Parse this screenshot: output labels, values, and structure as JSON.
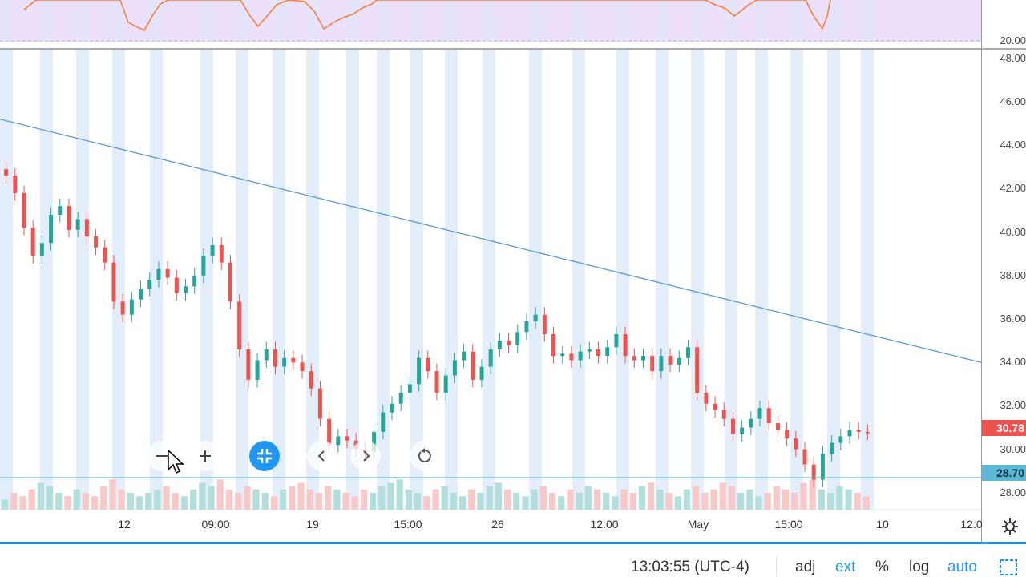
{
  "price_axis": {
    "rsi_labels": [
      "20.00"
    ],
    "labels": [
      "48.00",
      "46.00",
      "44.00",
      "42.00",
      "40.00",
      "38.00",
      "36.00",
      "34.00",
      "32.00",
      "30.00",
      "28.00"
    ],
    "last_price": "30.78",
    "line_price": "28.70",
    "last_price_color": "#ef5350",
    "line_price_color": "#5bb8d6"
  },
  "time_axis": {
    "labels": [
      "12",
      "09:00",
      "19",
      "15:00",
      "26",
      "12:00",
      "May",
      "15:00",
      "10",
      "12:0"
    ]
  },
  "nav_controls": {
    "zoom_out": "zoom-out",
    "zoom_in": "zoom-in",
    "reset": "reset-chart"
  },
  "bottom_bar": {
    "clock": "13:03:55 (UTC-4)",
    "adj": "adj",
    "ext": "ext",
    "percent": "%",
    "log": "log",
    "auto": "auto"
  },
  "colors": {
    "up": "#26a69a",
    "down": "#ef5350",
    "trendline": "#5b9bd5",
    "rsi": "#f57c32",
    "rsi_band": "#ede0fb",
    "session_band": "#e3eefa",
    "accent": "#2196f3"
  },
  "chart_data": {
    "type": "candlestick",
    "y_range": [
      27,
      48.5
    ],
    "closes": [
      42.6,
      41.8,
      40.2,
      38.9,
      39.5,
      40.8,
      41.2,
      40.1,
      40.6,
      39.8,
      39.3,
      38.6,
      36.8,
      36.2,
      36.9,
      37.4,
      37.8,
      38.3,
      37.9,
      37.2,
      37.5,
      38.0,
      38.9,
      39.4,
      38.6,
      36.8,
      34.6,
      33.2,
      34.1,
      34.6,
      33.8,
      34.2,
      34.0,
      33.6,
      32.8,
      31.4,
      30.2,
      30.6,
      30.4,
      30.0,
      29.9,
      30.8,
      31.7,
      32.1,
      32.6,
      33.0,
      34.2,
      33.6,
      32.6,
      33.4,
      34.1,
      34.5,
      33.2,
      33.8,
      34.6,
      35.0,
      34.8,
      35.4,
      35.9,
      36.2,
      35.3,
      34.3,
      34.4,
      34.1,
      34.5,
      34.6,
      34.3,
      34.7,
      35.3,
      34.3,
      34.1,
      34.3,
      33.6,
      34.3,
      33.9,
      34.2,
      34.7,
      32.6,
      32.1,
      31.8,
      31.4,
      30.7,
      31.0,
      31.4,
      31.9,
      31.2,
      30.9,
      30.5,
      30.0,
      29.3,
      28.6,
      29.8,
      30.3,
      30.6,
      30.9,
      30.8,
      30.78
    ],
    "volumes": [
      3,
      5,
      4,
      6,
      8,
      7,
      5,
      4,
      6,
      5,
      4,
      7,
      9,
      6,
      5,
      4,
      5,
      6,
      7,
      5,
      4,
      6,
      8,
      7,
      9,
      6,
      5,
      7,
      6,
      5,
      4,
      6,
      7,
      8,
      6,
      5,
      7,
      6,
      5,
      4,
      6,
      5,
      7,
      8,
      9,
      6,
      5,
      4,
      6,
      7,
      5,
      4,
      6,
      5,
      7,
      8,
      6,
      5,
      4,
      6,
      7,
      5,
      4,
      6,
      5,
      7,
      6,
      5,
      4,
      6,
      5,
      7,
      8,
      6,
      5,
      4,
      6,
      7,
      5,
      6,
      8,
      7,
      5,
      6,
      4,
      5,
      7,
      6,
      5,
      8,
      9,
      6,
      5,
      7,
      6,
      5,
      4
    ],
    "trendline": {
      "start": [
        0,
        45.2
      ],
      "end": [
        1,
        34.0
      ]
    },
    "horizontal_line": 28.7
  }
}
